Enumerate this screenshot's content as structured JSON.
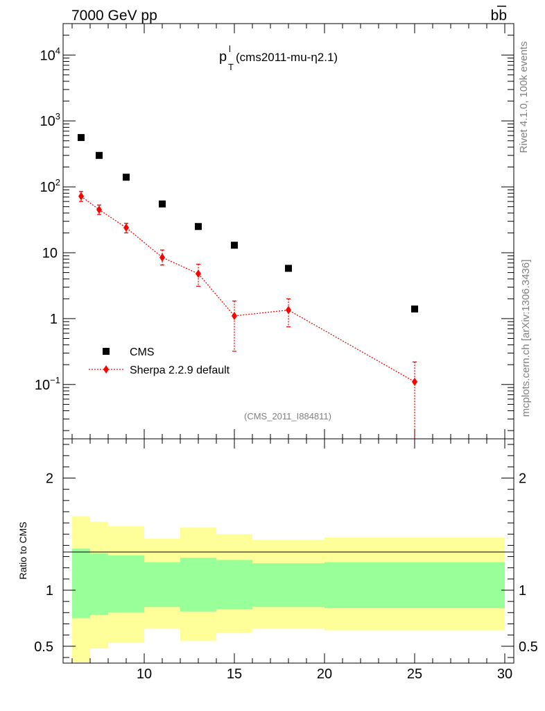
{
  "header": {
    "energy_label": "7000 GeV pp",
    "process_label": "bb",
    "title_main": "p",
    "title_sup": "l",
    "title_sub": "T",
    "title_rest": " (cms2011-mu-η2.1)"
  },
  "side": {
    "rivet": "Rivet 4.1.0,  100k events",
    "mcplots": "mcplots.cern.ch [arXiv:1306.3436]"
  },
  "analysis_id": "(CMS_2011_I884811)",
  "legend": {
    "cms": "CMS",
    "sherpa": "Sherpa 2.2.9 default"
  },
  "ratio_ylabel": "Ratio to CMS",
  "colors": {
    "mc": "#ff0000",
    "band_inner": "#99ff99",
    "band_outer": "#ffff99",
    "data": "#000000"
  },
  "chart_data": {
    "type": "scatter",
    "xlim": [
      5.5,
      30.5
    ],
    "main": {
      "yscale": "log",
      "ylim": [
        0.015,
        30000
      ],
      "ytick_labels": [
        {
          "v": 10000,
          "base": "10",
          "exp": "4"
        },
        {
          "v": 1000,
          "base": "10",
          "exp": "3"
        },
        {
          "v": 100,
          "base": "10",
          "exp": "2"
        },
        {
          "v": 10,
          "base": "10",
          "exp": ""
        },
        {
          "v": 1,
          "base": "1",
          "exp": ""
        },
        {
          "v": 0.1,
          "base": "10",
          "exp": "−1"
        }
      ],
      "series": [
        {
          "name": "CMS",
          "x": [
            6.5,
            7.5,
            9,
            11,
            13,
            15,
            18,
            25
          ],
          "y": [
            560,
            300,
            140,
            55,
            25,
            13,
            5.8,
            1.4
          ]
        },
        {
          "name": "Sherpa 2.2.9 default",
          "x": [
            6.5,
            7.5,
            9,
            11,
            13,
            15,
            18,
            25
          ],
          "y": [
            72,
            45,
            24,
            8.5,
            4.8,
            1.1,
            1.35,
            0.11
          ],
          "yerr_low": [
            60,
            38,
            20,
            6.5,
            3.1,
            0.32,
            0.75,
            0.012
          ],
          "yerr_high": [
            85,
            53,
            28,
            11,
            6.7,
            1.85,
            2.0,
            0.22
          ]
        }
      ]
    },
    "ratio": {
      "ylim": [
        0.35,
        2.35
      ],
      "yticks": [
        0.5,
        1,
        2
      ],
      "ytick_labels": [
        "0.5",
        "1",
        "2"
      ],
      "xticks": [
        10,
        15,
        20,
        25,
        30
      ],
      "xtick_labels": [
        "10",
        "15",
        "20",
        "25",
        "30"
      ],
      "bins": [
        {
          "lo": 6,
          "hi": 7,
          "in_lo": 0.75,
          "in_hi": 1.37,
          "out_lo": 0.36,
          "out_hi": 1.66
        },
        {
          "lo": 7,
          "hi": 8,
          "in_lo": 0.78,
          "in_hi": 1.33,
          "out_lo": 0.48,
          "out_hi": 1.61
        },
        {
          "lo": 8,
          "hi": 10,
          "in_lo": 0.8,
          "in_hi": 1.31,
          "out_lo": 0.53,
          "out_hi": 1.57
        },
        {
          "lo": 10,
          "hi": 12,
          "in_lo": 0.85,
          "in_hi": 1.25,
          "out_lo": 0.66,
          "out_hi": 1.46
        },
        {
          "lo": 12,
          "hi": 14,
          "in_lo": 0.81,
          "in_hi": 1.29,
          "out_lo": 0.55,
          "out_hi": 1.56
        },
        {
          "lo": 14,
          "hi": 16,
          "in_lo": 0.83,
          "in_hi": 1.27,
          "out_lo": 0.62,
          "out_hi": 1.5
        },
        {
          "lo": 16,
          "hi": 20,
          "in_lo": 0.85,
          "in_hi": 1.24,
          "out_lo": 0.66,
          "out_hi": 1.45
        },
        {
          "lo": 20,
          "hi": 30,
          "in_lo": 0.84,
          "in_hi": 1.25,
          "out_lo": 0.64,
          "out_hi": 1.47
        }
      ]
    }
  }
}
